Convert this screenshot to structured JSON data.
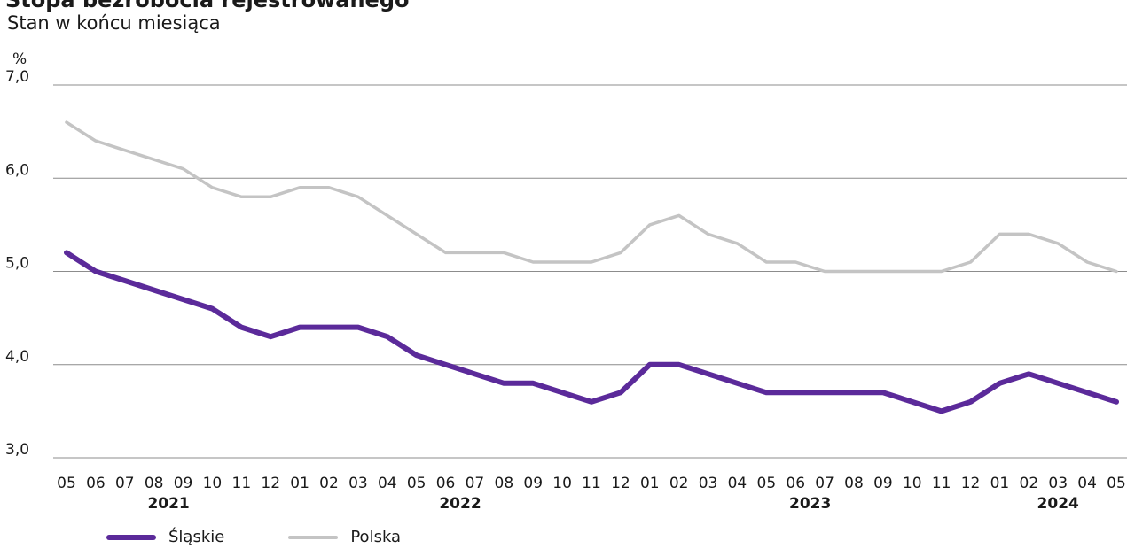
{
  "header": {
    "title": "Stopa bezrobocia rejestrowanego",
    "subtitle": "Stan w końcu miesiąca"
  },
  "colors": {
    "slaskie": "#5b2a9a",
    "polska": "#c4c4c4",
    "grid": "#8c8c8c"
  },
  "chart_data": {
    "type": "line",
    "title": "Stopa bezrobocia rejestrowanego",
    "subtitle": "Stan w końcu miesiąca",
    "ylabel": "%",
    "ylim": [
      3.0,
      7.0
    ],
    "yticks": [
      "3,0",
      "4,0",
      "5,0",
      "6,0",
      "7,0"
    ],
    "ytick_values": [
      3.0,
      4.0,
      5.0,
      6.0,
      7.0
    ],
    "grid": true,
    "legend": "bottom-left",
    "categories": [
      "05",
      "06",
      "07",
      "08",
      "09",
      "10",
      "11",
      "12",
      "01",
      "02",
      "03",
      "04",
      "05",
      "06",
      "07",
      "08",
      "09",
      "10",
      "11",
      "12",
      "01",
      "02",
      "03",
      "04",
      "05",
      "06",
      "07",
      "08",
      "09",
      "10",
      "11",
      "12",
      "01",
      "02",
      "03",
      "04",
      "05"
    ],
    "x": [
      "2021-05",
      "2021-06",
      "2021-07",
      "2021-08",
      "2021-09",
      "2021-10",
      "2021-11",
      "2021-12",
      "2022-01",
      "2022-02",
      "2022-03",
      "2022-04",
      "2022-05",
      "2022-06",
      "2022-07",
      "2022-08",
      "2022-09",
      "2022-10",
      "2022-11",
      "2022-12",
      "2023-01",
      "2023-02",
      "2023-03",
      "2023-04",
      "2023-05",
      "2023-06",
      "2023-07",
      "2023-08",
      "2023-09",
      "2023-10",
      "2023-11",
      "2023-12",
      "2024-01",
      "2024-02",
      "2024-03",
      "2024-04",
      "2024-05"
    ],
    "year_labels": [
      {
        "label": "2021",
        "index": 3.5
      },
      {
        "label": "2022",
        "index": 13.5
      },
      {
        "label": "2023",
        "index": 25.5
      },
      {
        "label": "2024",
        "index": 34
      }
    ],
    "series": [
      {
        "name": "Śląskie",
        "values": [
          5.2,
          5.0,
          4.9,
          4.8,
          4.7,
          4.6,
          4.4,
          4.3,
          4.4,
          4.4,
          4.4,
          4.3,
          4.1,
          4.0,
          3.9,
          3.8,
          3.8,
          3.7,
          3.6,
          3.7,
          4.0,
          4.0,
          3.9,
          3.8,
          3.7,
          3.7,
          3.7,
          3.7,
          3.7,
          3.6,
          3.5,
          3.6,
          3.8,
          3.9,
          3.8,
          3.7,
          3.6
        ]
      },
      {
        "name": "Polska",
        "values": [
          6.6,
          6.4,
          6.3,
          6.2,
          6.1,
          5.9,
          5.8,
          5.8,
          5.9,
          5.9,
          5.8,
          5.6,
          5.4,
          5.2,
          5.2,
          5.2,
          5.1,
          5.1,
          5.1,
          5.2,
          5.5,
          5.6,
          5.4,
          5.3,
          5.1,
          5.1,
          5.0,
          5.0,
          5.0,
          5.0,
          5.0,
          5.1,
          5.4,
          5.4,
          5.3,
          5.1,
          5.0
        ]
      }
    ]
  }
}
